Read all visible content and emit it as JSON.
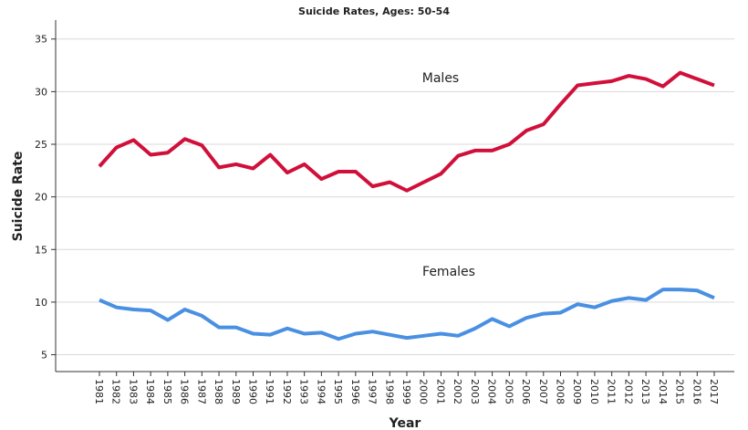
{
  "chart_data": {
    "type": "line",
    "title": "Suicide Rates, Ages: 50-54",
    "x_label": "Year",
    "y_label": "Suicide Rate",
    "categories": [
      "1981",
      "1982",
      "1983",
      "1984",
      "1985",
      "1986",
      "1987",
      "1988",
      "1989",
      "1990",
      "1991",
      "1992",
      "1993",
      "1994",
      "1995",
      "1996",
      "1997",
      "1998",
      "1999",
      "2000",
      "2001",
      "2002",
      "2003",
      "2004",
      "2005",
      "2006",
      "2007",
      "2008",
      "2009",
      "2010",
      "2011",
      "2012",
      "2013",
      "2014",
      "2015",
      "2016",
      "2017"
    ],
    "series": [
      {
        "name": "Males",
        "color": "#d0103a",
        "values": [
          22.9,
          24.7,
          25.4,
          24.0,
          24.2,
          25.5,
          24.9,
          22.8,
          23.1,
          22.7,
          24.0,
          22.3,
          23.1,
          21.7,
          22.4,
          22.4,
          21.0,
          21.4,
          20.6,
          21.4,
          22.2,
          23.9,
          24.4,
          24.4,
          25.0,
          26.3,
          26.9,
          28.8,
          30.6,
          30.8,
          31.0,
          31.5,
          31.2,
          30.5,
          31.8,
          31.2,
          30.6
        ]
      },
      {
        "name": "Females",
        "color": "#4a90e2",
        "values": [
          10.2,
          9.5,
          9.3,
          9.2,
          8.3,
          9.3,
          8.7,
          7.6,
          7.6,
          7.0,
          6.9,
          7.5,
          7.0,
          7.1,
          6.5,
          7.0,
          7.2,
          6.9,
          6.6,
          6.8,
          7.0,
          6.8,
          7.5,
          8.4,
          7.7,
          8.5,
          8.9,
          9.0,
          9.8,
          9.5,
          10.1,
          10.4,
          10.2,
          11.2,
          11.2,
          11.1,
          10.4
        ]
      }
    ],
    "ylim": [
      3.4,
      36.8
    ],
    "yticks": [
      5,
      10,
      15,
      20,
      25,
      30,
      35
    ],
    "grid": true
  }
}
